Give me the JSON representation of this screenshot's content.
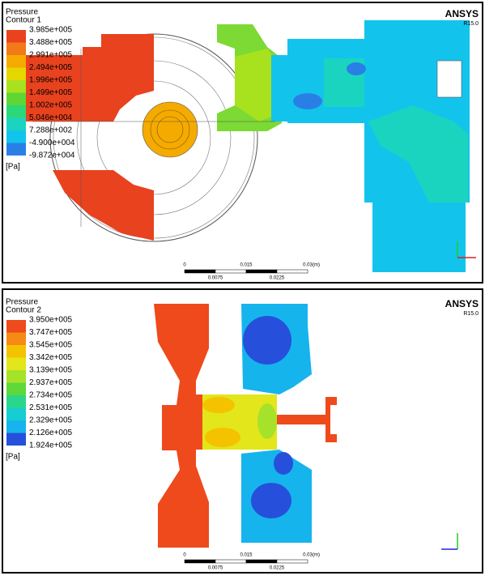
{
  "panels": [
    {
      "title": "Pressure",
      "subtitle": "Contour 1",
      "legend": {
        "labels": [
          "3.985e+005",
          "3.488e+005",
          "2.991e+005",
          "2.494e+005",
          "1.996e+005",
          "1.499e+005",
          "1.002e+005",
          "5.046e+004",
          "7.288e+002",
          "-4.900e+004",
          "-9.872e+004"
        ],
        "colors": [
          "#e8421e",
          "#f27a18",
          "#f5aa00",
          "#e6d600",
          "#a8e21e",
          "#5fd634",
          "#2ad878",
          "#1ad4c0",
          "#12c4ec",
          "#2a7fe6"
        ]
      },
      "unit": "[Pa]",
      "brand": "ANSYS",
      "version": "R15.0",
      "scale": {
        "major": [
          "0",
          "0.015",
          "0.03"
        ],
        "unit": "(m)",
        "minor": [
          "0.0075",
          "0.0225"
        ]
      }
    },
    {
      "title": "Pressure",
      "subtitle": "Contour 2",
      "legend": {
        "labels": [
          "3.950e+005",
          "3.747e+005",
          "3.545e+005",
          "3.342e+005",
          "3.139e+005",
          "2.937e+005",
          "2.734e+005",
          "2.531e+005",
          "2.329e+005",
          "2.126e+005",
          "1.924e+005"
        ],
        "colors": [
          "#ee4a1c",
          "#f58a14",
          "#f5c200",
          "#e2e61a",
          "#a6e22a",
          "#5fd83a",
          "#2ad68a",
          "#16cdd2",
          "#16b4ec",
          "#2650dc"
        ]
      },
      "unit": "[Pa]",
      "brand": "ANSYS",
      "version": "R15.0",
      "scale": {
        "major": [
          "0",
          "0.015",
          "0.03"
        ],
        "unit": "(m)",
        "minor": [
          "0.0075",
          "0.0225"
        ]
      }
    }
  ]
}
